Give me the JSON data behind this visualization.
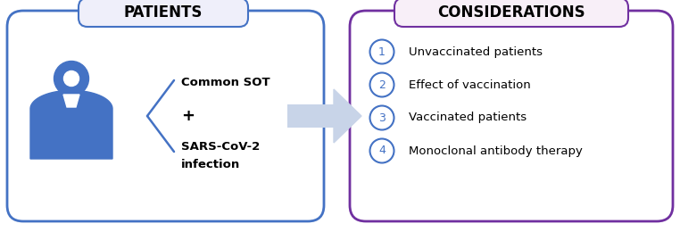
{
  "left_box_title": "PATIENTS",
  "right_box_title": "CONSIDERATIONS",
  "left_box_color": "#4472C4",
  "right_box_color": "#7030A0",
  "person_color": "#4472C4",
  "bracket_color": "#4472C4",
  "arrow_color": "#C8D4E8",
  "circle_color": "#4472C4",
  "items": [
    "Unvaccinated patients",
    "Effect of vaccination",
    "Vaccinated patients",
    "Monoclonal antibody therapy"
  ],
  "left_text_line1": "Common SOT",
  "left_text_plus": "+",
  "left_text_line2": "SARS-CoV-2",
  "left_text_line3": "infection",
  "bg_color": "#FFFFFF"
}
